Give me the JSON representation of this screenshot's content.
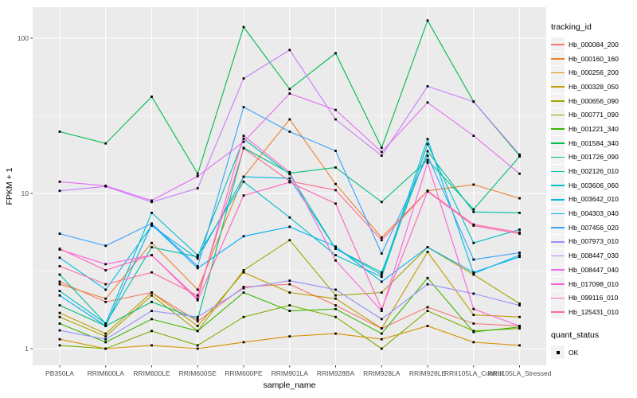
{
  "chart_data": {
    "type": "line",
    "title": "",
    "xlabel": "sample_name",
    "ylabel": "FPKM + 1",
    "y_scale": "log10",
    "ylim": [
      0.78,
      158
    ],
    "y_ticks": [
      1,
      10,
      100
    ],
    "grid": true,
    "legend_position": "right",
    "panel_bg": "#EBEBEB",
    "grid_color": "#FFFFFF",
    "point_color": "#000000",
    "point_shape": "square",
    "legend_title": "tracking_id",
    "legend2_title": "quant_status",
    "quant_status_label": "OK",
    "categories": [
      "PB350LA",
      "RRIM600LA",
      "RRIM600LE",
      "RRIM600SE",
      "RRIM600PE",
      "RRIM901LA",
      "RRIM928BA",
      "RRIM928LA",
      "RRIM928LE",
      "RRII105LA_Control",
      "RRII105LA_Stressed"
    ],
    "series": [
      {
        "name": "Hb_000084_200",
        "color": "#F8766D",
        "values": [
          2.7,
          2.0,
          2.3,
          1.5,
          2.5,
          2.6,
          1.9,
          1.35,
          1.85,
          1.45,
          1.4
        ]
      },
      {
        "name": "Hb_000160_160",
        "color": "#EA8331",
        "values": [
          2.6,
          2.1,
          4.8,
          2.4,
          12.8,
          30,
          11.5,
          5.2,
          10.4,
          11.4,
          9.3
        ]
      },
      {
        "name": "Hb_000256_200",
        "color": "#D89000",
        "values": [
          1.15,
          1.0,
          1.05,
          1.0,
          1.1,
          1.2,
          1.25,
          1.15,
          1.4,
          1.1,
          1.05
        ]
      },
      {
        "name": "Hb_000328_050",
        "color": "#C09B00",
        "values": [
          1.7,
          1.25,
          2.3,
          1.4,
          3.1,
          2.3,
          2.1,
          1.35,
          4.2,
          1.65,
          1.6
        ]
      },
      {
        "name": "Hb_000656_090",
        "color": "#A3A500",
        "values": [
          1.6,
          1.2,
          2.2,
          1.3,
          3.2,
          5.0,
          2.2,
          2.3,
          4.5,
          3.0,
          1.95
        ]
      },
      {
        "name": "Hb_000771_090",
        "color": "#7CAE00",
        "values": [
          1.05,
          1.0,
          1.3,
          1.05,
          1.6,
          1.9,
          1.6,
          1.0,
          1.75,
          1.3,
          1.35
        ]
      },
      {
        "name": "Hb_001221_340",
        "color": "#39B600",
        "values": [
          1.45,
          1.1,
          1.55,
          1.3,
          2.3,
          1.75,
          1.8,
          1.25,
          2.85,
          1.28,
          1.38
        ]
      },
      {
        "name": "Hb_001584_340",
        "color": "#00BB4E",
        "values": [
          25,
          21,
          42,
          13.4,
          118,
          47,
          80,
          19.7,
          130,
          39,
          17.5
        ]
      },
      {
        "name": "Hb_001726_090",
        "color": "#00BF7D",
        "values": [
          1.9,
          1.4,
          2.0,
          1.55,
          19.7,
          13.5,
          14.7,
          8.8,
          16.4,
          7.9,
          17.3
        ]
      },
      {
        "name": "Hb_002126_010",
        "color": "#00C1A3",
        "values": [
          3.0,
          1.45,
          4.5,
          3.9,
          22.5,
          13.3,
          4.4,
          3.1,
          18.7,
          7.6,
          7.5
        ]
      },
      {
        "name": "Hb_003606_060",
        "color": "#00BFC4",
        "values": [
          2.35,
          1.45,
          7.5,
          4.0,
          11.9,
          7.0,
          4.0,
          2.9,
          20.8,
          4.8,
          5.85
        ]
      },
      {
        "name": "Hb_003642_010",
        "color": "#00BAE0",
        "values": [
          3.85,
          2.4,
          6.2,
          3.8,
          12.8,
          12.5,
          4.4,
          3.0,
          22.4,
          3.05,
          4.0
        ]
      },
      {
        "name": "Hb_004303_040",
        "color": "#00B0F6",
        "values": [
          2.2,
          1.4,
          6.3,
          3.3,
          5.3,
          6.1,
          4.55,
          2.7,
          4.5,
          3.1,
          3.9
        ]
      },
      {
        "name": "Hb_007456_020",
        "color": "#35A2FF",
        "values": [
          5.5,
          4.6,
          6.4,
          3.4,
          36,
          25,
          18.8,
          4.1,
          17.5,
          3.75,
          4.15
        ]
      },
      {
        "name": "Hb_007973_010",
        "color": "#9590FF",
        "values": [
          1.31,
          1.15,
          1.75,
          1.6,
          2.45,
          2.74,
          2.4,
          1.55,
          2.6,
          2.26,
          1.9
        ]
      },
      {
        "name": "Hb_008447_030",
        "color": "#C77CFF",
        "values": [
          10.4,
          11.1,
          8.8,
          10.8,
          55,
          84,
          30,
          17.5,
          49,
          39,
          17.8
        ]
      },
      {
        "name": "Hb_008447_040",
        "color": "#E76BF3",
        "values": [
          11.9,
          11.2,
          9.0,
          12.9,
          21.5,
          44,
          34.5,
          18.5,
          38.5,
          23.5,
          13.4
        ]
      },
      {
        "name": "Hb_017098_010",
        "color": "#FA62DB",
        "values": [
          4.35,
          3.5,
          4.0,
          2.1,
          23.5,
          13.7,
          3.7,
          1.75,
          15.8,
          1.8,
          1.4
        ]
      },
      {
        "name": "Hb_099116_010",
        "color": "#FF62BC",
        "values": [
          4.4,
          3.2,
          4.0,
          2.05,
          9.7,
          11.8,
          8.6,
          1.8,
          10.3,
          6.2,
          5.5
        ]
      },
      {
        "name": "Hb_125431_010",
        "color": "#FF6A98",
        "values": [
          3.4,
          2.6,
          3.1,
          2.2,
          19.5,
          12.0,
          10.5,
          5.0,
          10.4,
          6.3,
          5.6
        ]
      }
    ]
  }
}
